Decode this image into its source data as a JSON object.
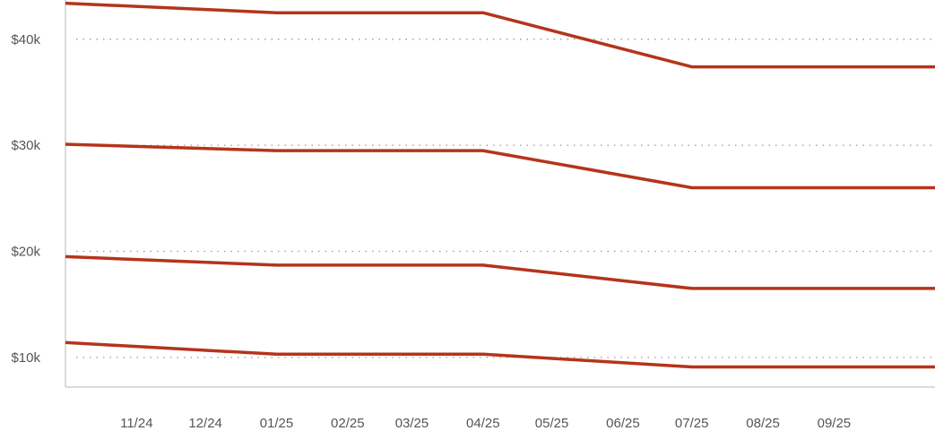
{
  "chart_data": {
    "type": "line",
    "title": "",
    "xlabel": "",
    "ylabel": "",
    "x_tick_labels": [
      "11/24",
      "12/24",
      "01/25",
      "02/25",
      "03/25",
      "04/25",
      "05/25",
      "06/25",
      "07/25",
      "08/25",
      "09/25"
    ],
    "y_tick_labels": [
      "$40k",
      "$30k",
      "$20k",
      "$10k"
    ],
    "y_tick_values": [
      40000,
      30000,
      20000,
      10000
    ],
    "x_range": [
      "2024-10-01",
      "2025-10-15"
    ],
    "ylim": [
      7200,
      43700
    ],
    "grid": "horizontal dotted",
    "legend": "none",
    "line_color": "#b5341b",
    "series": [
      {
        "x": [
          "2024-10-01",
          "2025-01-01",
          "2025-04-01",
          "2025-07-01",
          "2025-10-15"
        ],
        "values": [
          43400,
          42500,
          42500,
          37400,
          37400
        ]
      },
      {
        "x": [
          "2024-10-01",
          "2025-01-01",
          "2025-04-01",
          "2025-07-01",
          "2025-10-15"
        ],
        "values": [
          30100,
          29500,
          29500,
          26000,
          26000
        ]
      },
      {
        "x": [
          "2024-10-01",
          "2025-01-01",
          "2025-04-01",
          "2025-07-01",
          "2025-10-15"
        ],
        "values": [
          19500,
          18700,
          18700,
          16500,
          16500
        ]
      },
      {
        "x": [
          "2024-10-01",
          "2025-01-01",
          "2025-04-01",
          "2025-07-01",
          "2025-10-15"
        ],
        "values": [
          11400,
          10300,
          10300,
          9100,
          9100
        ]
      }
    ]
  }
}
